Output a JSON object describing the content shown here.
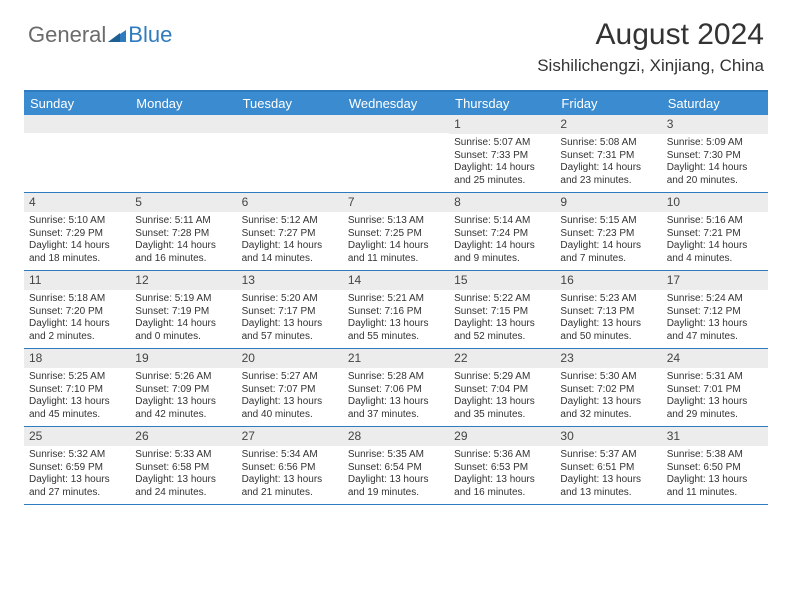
{
  "logo": {
    "text_general": "General",
    "text_blue": "Blue"
  },
  "title": "August 2024",
  "location": "Sishilichengzi, Xinjiang, China",
  "colors": {
    "header_bg": "#3a8bcf",
    "header_text": "#ffffff",
    "rule": "#2f7bbf",
    "daynum_bg": "#ececec",
    "text": "#333333",
    "logo_grey": "#6b6b6b",
    "logo_blue": "#2f7bbf"
  },
  "day_names": [
    "Sunday",
    "Monday",
    "Tuesday",
    "Wednesday",
    "Thursday",
    "Friday",
    "Saturday"
  ],
  "weeks": [
    [
      null,
      null,
      null,
      null,
      {
        "n": "1",
        "sr": "5:07 AM",
        "ss": "7:33 PM",
        "dl": "14 hours and 25 minutes."
      },
      {
        "n": "2",
        "sr": "5:08 AM",
        "ss": "7:31 PM",
        "dl": "14 hours and 23 minutes."
      },
      {
        "n": "3",
        "sr": "5:09 AM",
        "ss": "7:30 PM",
        "dl": "14 hours and 20 minutes."
      }
    ],
    [
      {
        "n": "4",
        "sr": "5:10 AM",
        "ss": "7:29 PM",
        "dl": "14 hours and 18 minutes."
      },
      {
        "n": "5",
        "sr": "5:11 AM",
        "ss": "7:28 PM",
        "dl": "14 hours and 16 minutes."
      },
      {
        "n": "6",
        "sr": "5:12 AM",
        "ss": "7:27 PM",
        "dl": "14 hours and 14 minutes."
      },
      {
        "n": "7",
        "sr": "5:13 AM",
        "ss": "7:25 PM",
        "dl": "14 hours and 11 minutes."
      },
      {
        "n": "8",
        "sr": "5:14 AM",
        "ss": "7:24 PM",
        "dl": "14 hours and 9 minutes."
      },
      {
        "n": "9",
        "sr": "5:15 AM",
        "ss": "7:23 PM",
        "dl": "14 hours and 7 minutes."
      },
      {
        "n": "10",
        "sr": "5:16 AM",
        "ss": "7:21 PM",
        "dl": "14 hours and 4 minutes."
      }
    ],
    [
      {
        "n": "11",
        "sr": "5:18 AM",
        "ss": "7:20 PM",
        "dl": "14 hours and 2 minutes."
      },
      {
        "n": "12",
        "sr": "5:19 AM",
        "ss": "7:19 PM",
        "dl": "14 hours and 0 minutes."
      },
      {
        "n": "13",
        "sr": "5:20 AM",
        "ss": "7:17 PM",
        "dl": "13 hours and 57 minutes."
      },
      {
        "n": "14",
        "sr": "5:21 AM",
        "ss": "7:16 PM",
        "dl": "13 hours and 55 minutes."
      },
      {
        "n": "15",
        "sr": "5:22 AM",
        "ss": "7:15 PM",
        "dl": "13 hours and 52 minutes."
      },
      {
        "n": "16",
        "sr": "5:23 AM",
        "ss": "7:13 PM",
        "dl": "13 hours and 50 minutes."
      },
      {
        "n": "17",
        "sr": "5:24 AM",
        "ss": "7:12 PM",
        "dl": "13 hours and 47 minutes."
      }
    ],
    [
      {
        "n": "18",
        "sr": "5:25 AM",
        "ss": "7:10 PM",
        "dl": "13 hours and 45 minutes."
      },
      {
        "n": "19",
        "sr": "5:26 AM",
        "ss": "7:09 PM",
        "dl": "13 hours and 42 minutes."
      },
      {
        "n": "20",
        "sr": "5:27 AM",
        "ss": "7:07 PM",
        "dl": "13 hours and 40 minutes."
      },
      {
        "n": "21",
        "sr": "5:28 AM",
        "ss": "7:06 PM",
        "dl": "13 hours and 37 minutes."
      },
      {
        "n": "22",
        "sr": "5:29 AM",
        "ss": "7:04 PM",
        "dl": "13 hours and 35 minutes."
      },
      {
        "n": "23",
        "sr": "5:30 AM",
        "ss": "7:02 PM",
        "dl": "13 hours and 32 minutes."
      },
      {
        "n": "24",
        "sr": "5:31 AM",
        "ss": "7:01 PM",
        "dl": "13 hours and 29 minutes."
      }
    ],
    [
      {
        "n": "25",
        "sr": "5:32 AM",
        "ss": "6:59 PM",
        "dl": "13 hours and 27 minutes."
      },
      {
        "n": "26",
        "sr": "5:33 AM",
        "ss": "6:58 PM",
        "dl": "13 hours and 24 minutes."
      },
      {
        "n": "27",
        "sr": "5:34 AM",
        "ss": "6:56 PM",
        "dl": "13 hours and 21 minutes."
      },
      {
        "n": "28",
        "sr": "5:35 AM",
        "ss": "6:54 PM",
        "dl": "13 hours and 19 minutes."
      },
      {
        "n": "29",
        "sr": "5:36 AM",
        "ss": "6:53 PM",
        "dl": "13 hours and 16 minutes."
      },
      {
        "n": "30",
        "sr": "5:37 AM",
        "ss": "6:51 PM",
        "dl": "13 hours and 13 minutes."
      },
      {
        "n": "31",
        "sr": "5:38 AM",
        "ss": "6:50 PM",
        "dl": "13 hours and 11 minutes."
      }
    ]
  ],
  "labels": {
    "sunrise": "Sunrise: ",
    "sunset": "Sunset: ",
    "daylight": "Daylight: "
  }
}
